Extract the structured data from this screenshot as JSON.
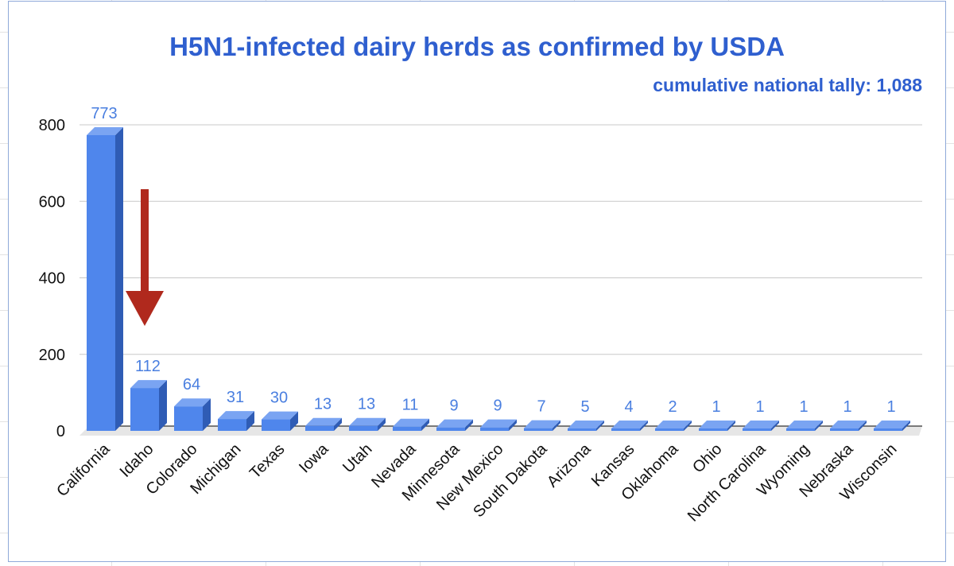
{
  "chart_data": {
    "type": "bar",
    "title": "H5N1-infected dairy herds as confirmed by USDA",
    "subtitle": "cumulative national tally: 1,088",
    "categories": [
      "California",
      "Idaho",
      "Colorado",
      "Michigan",
      "Texas",
      "Iowa",
      "Utah",
      "Nevada",
      "Minnesota",
      "New Mexico",
      "South Dakota",
      "Arizona",
      "Kansas",
      "Oklahoma",
      "Ohio",
      "North Carolina",
      "Wyoming",
      "Nebraska",
      "Wisconsin"
    ],
    "values": [
      773,
      112,
      64,
      31,
      30,
      13,
      13,
      11,
      9,
      9,
      7,
      5,
      4,
      2,
      1,
      1,
      1,
      1,
      1
    ],
    "data_labels": [
      "773",
      "112",
      "64",
      "31",
      "30",
      "13",
      "13",
      "11",
      "9",
      "9",
      "7",
      "5",
      "4",
      "2",
      "1",
      "1",
      "1",
      "1",
      "1"
    ],
    "y_ticks": [
      "0",
      "200",
      "400",
      "600",
      "800"
    ],
    "ylim": [
      0,
      800
    ],
    "xlabel": "",
    "ylabel": "",
    "grid": true,
    "legend": "none",
    "annotation": "downward red arrow above Idaho",
    "colors": {
      "bar_front": "#4f86ec",
      "bar_side": "#2f5cb5",
      "bar_top": "#7aa4f2",
      "arrow": "#b0291d",
      "title": "#2f5fcf",
      "data_label": "#4a7fe0"
    }
  }
}
